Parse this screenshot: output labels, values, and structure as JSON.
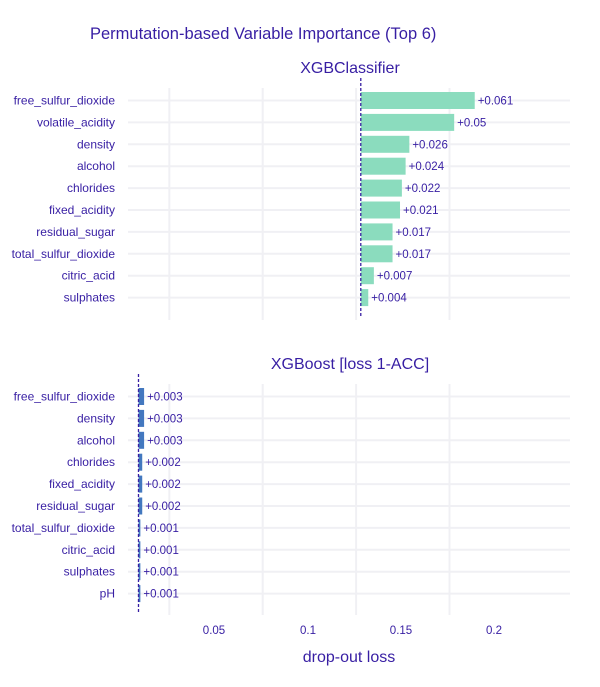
{
  "chart_data": {
    "type": "bar",
    "title": "Permutation-based Variable Importance (Top 6)",
    "xlabel": "drop-out loss",
    "xlim": [
      0.0,
      0.24
    ],
    "x_ticks": [
      "0.05",
      "0.1",
      "0.15",
      "0.2"
    ],
    "grid": true,
    "panels": [
      {
        "name": "XGBClassifier",
        "color": "#8bdcbe",
        "baseline": 0.1525,
        "categories": [
          "free_sulfur_dioxide",
          "volatile_acidity",
          "density",
          "alcohol",
          "chlorides",
          "fixed_acidity",
          "residual_sugar",
          "total_sulfur_dioxide",
          "citric_acid",
          "sulphates"
        ],
        "values": [
          0.061,
          0.05,
          0.026,
          0.024,
          0.022,
          0.021,
          0.017,
          0.017,
          0.007,
          0.004
        ],
        "labels": [
          "+0.061",
          "+0.05",
          "+0.026",
          "+0.024",
          "+0.022",
          "+0.021",
          "+0.017",
          "+0.017",
          "+0.007",
          "+0.004"
        ]
      },
      {
        "name": "XGBoost [loss 1-ACC]",
        "color": "#4378bf",
        "baseline": 0.0335,
        "categories": [
          "free_sulfur_dioxide",
          "density",
          "alcohol",
          "chlorides",
          "fixed_acidity",
          "residual_sugar",
          "total_sulfur_dioxide",
          "citric_acid",
          "sulphates",
          "pH"
        ],
        "values": [
          0.003,
          0.003,
          0.003,
          0.002,
          0.002,
          0.002,
          0.001,
          0.001,
          0.001,
          0.001
        ],
        "labels": [
          "+0.003",
          "+0.003",
          "+0.003",
          "+0.002",
          "+0.002",
          "+0.002",
          "+0.001",
          "+0.001",
          "+0.001",
          "+0.001"
        ]
      }
    ]
  }
}
